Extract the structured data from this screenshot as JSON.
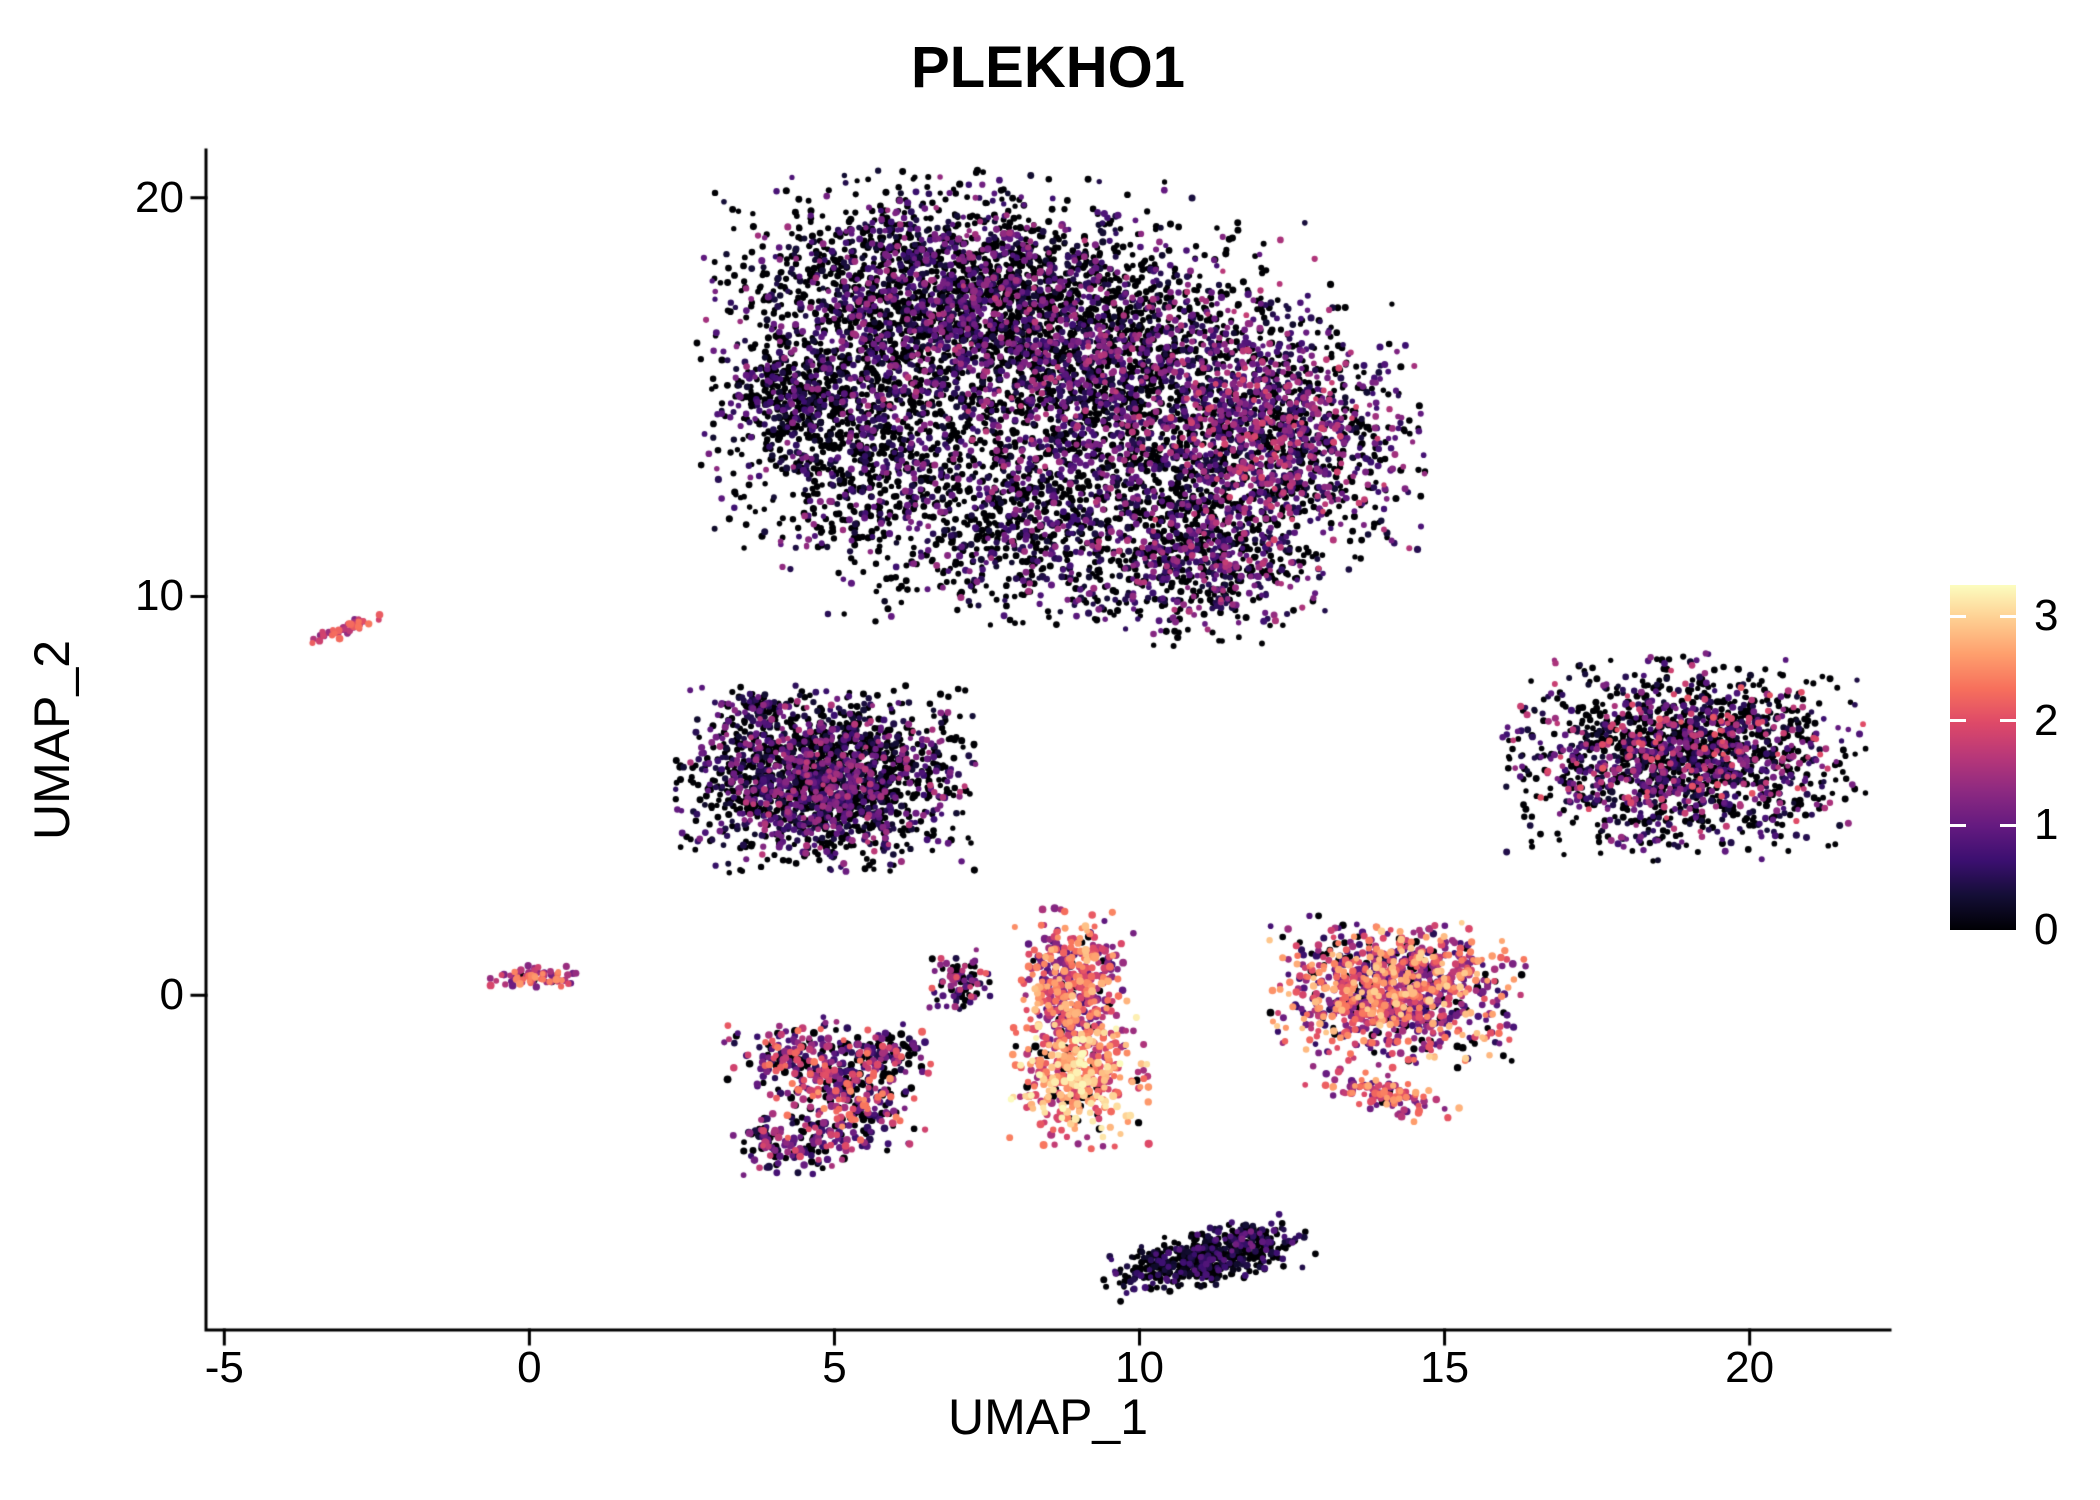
{
  "chart_data": {
    "type": "scatter",
    "title": "PLEKHO1",
    "xlabel": "UMAP_1",
    "ylabel": "UMAP_2",
    "x_ticks": [
      -5,
      0,
      5,
      10,
      15,
      20
    ],
    "y_ticks": [
      0,
      10,
      20
    ],
    "xlim": [
      -5.3,
      22.3
    ],
    "ylim": [
      -8.4,
      21.2
    ],
    "grid": false,
    "legend_position": "right",
    "colorbar": {
      "ticks": [
        0,
        1,
        2,
        3
      ],
      "vmin": 0,
      "vmax": 3.3,
      "colormap": "magma",
      "stops": [
        {
          "t": 0.0,
          "color": "#000004"
        },
        {
          "t": 0.1,
          "color": "#140e36"
        },
        {
          "t": 0.2,
          "color": "#3b0f70"
        },
        {
          "t": 0.3,
          "color": "#641a80"
        },
        {
          "t": 0.4,
          "color": "#8c2981"
        },
        {
          "t": 0.5,
          "color": "#b73779"
        },
        {
          "t": 0.6,
          "color": "#de4968"
        },
        {
          "t": 0.7,
          "color": "#f7705c"
        },
        {
          "t": 0.8,
          "color": "#fe9f6d"
        },
        {
          "t": 0.9,
          "color": "#fece91"
        },
        {
          "t": 1.0,
          "color": "#fcfdbf"
        }
      ]
    },
    "clusters": [
      {
        "name": "main-upper-left",
        "cx": 6.8,
        "cy": 17.7,
        "sx": 1.7,
        "sy": 1.25,
        "n": 2000,
        "p0": 0.6,
        "vmin": 0.25,
        "vmax": 1.5,
        "skew": 1.4
      },
      {
        "name": "main-center",
        "cx": 9.3,
        "cy": 15.6,
        "sx": 1.7,
        "sy": 1.6,
        "n": 2300,
        "p0": 0.52,
        "vmin": 0.25,
        "vmax": 1.7,
        "skew": 1.4
      },
      {
        "name": "main-right-lobe",
        "cx": 12.2,
        "cy": 13.9,
        "sx": 1.05,
        "sy": 1.45,
        "n": 1300,
        "p0": 0.38,
        "vmin": 0.3,
        "vmax": 1.9,
        "skew": 1.2
      },
      {
        "name": "main-left-lobe",
        "cx": 5.2,
        "cy": 14.2,
        "sx": 1.0,
        "sy": 1.5,
        "n": 950,
        "p0": 0.62,
        "vmin": 0.25,
        "vmax": 1.4,
        "skew": 1.5
      },
      {
        "name": "main-bottom",
        "cx": 8.3,
        "cy": 11.9,
        "sx": 1.6,
        "sy": 1.0,
        "n": 850,
        "p0": 0.62,
        "vmin": 0.25,
        "vmax": 1.5,
        "skew": 1.4
      },
      {
        "name": "main-bottom-right",
        "cx": 11.0,
        "cy": 10.9,
        "sx": 0.9,
        "sy": 0.9,
        "n": 600,
        "p0": 0.45,
        "vmin": 0.3,
        "vmax": 1.7,
        "skew": 1.3
      },
      {
        "name": "main-left-nub",
        "cx": 4.2,
        "cy": 15.2,
        "sx": 0.5,
        "sy": 0.55,
        "n": 200,
        "p0": 0.6,
        "vmin": 0.25,
        "vmax": 1.2,
        "skew": 1.4
      },
      {
        "name": "main-south-noise",
        "cx": 8.0,
        "cy": 10.1,
        "sx": 1.5,
        "sy": 0.5,
        "n": 70,
        "p0": 0.7,
        "vmin": 0.2,
        "vmax": 1.0,
        "skew": 1.4
      },
      {
        "name": "far-left-streak",
        "cx": -3.05,
        "cy": 9.15,
        "sx": 0.3,
        "sy": 0.07,
        "rot": 35,
        "n": 42,
        "p0": 0.03,
        "vmin": 1.2,
        "vmax": 2.4,
        "skew": 1.0,
        "rscale": 1.1
      },
      {
        "name": "mid-left",
        "cx": 4.8,
        "cy": 5.4,
        "sx": 1.05,
        "sy": 1.0,
        "n": 1900,
        "p0": 0.52,
        "vmin": 0.25,
        "vmax": 1.7,
        "skew": 1.5
      },
      {
        "name": "mid-left-nub",
        "cx": 3.75,
        "cy": 7.2,
        "sx": 0.3,
        "sy": 0.22,
        "n": 60,
        "p0": 0.5,
        "vmin": 0.25,
        "vmax": 1.4,
        "skew": 1.3
      },
      {
        "name": "right-round",
        "cx": 18.9,
        "cy": 6.0,
        "sx": 1.25,
        "sy": 1.1,
        "n": 1700,
        "p0": 0.5,
        "vmin": 0.25,
        "vmax": 2.1,
        "skew": 1.6
      },
      {
        "name": "tiny-origin",
        "cx": 0.05,
        "cy": 0.45,
        "sx": 0.33,
        "sy": 0.13,
        "n": 70,
        "p0": 0.05,
        "vmin": 1.0,
        "vmax": 2.6,
        "skew": 1.1,
        "rscale": 1.1
      },
      {
        "name": "small-mid",
        "cx": 7.05,
        "cy": 0.3,
        "sx": 0.22,
        "sy": 0.35,
        "n": 85,
        "p0": 0.32,
        "vmin": 0.4,
        "vmax": 2.2,
        "skew": 1.2
      },
      {
        "name": "bright-upper",
        "cx": 8.9,
        "cy": 0.2,
        "sx": 0.42,
        "sy": 0.85,
        "n": 420,
        "p0": 0.08,
        "vmin": 0.7,
        "vmax": 2.9,
        "skew": 0.9,
        "rscale": 1.12
      },
      {
        "name": "bright-lower",
        "cx": 9.0,
        "cy": -2.1,
        "sx": 0.48,
        "sy": 0.75,
        "n": 380,
        "p0": 0.04,
        "vmin": 1.3,
        "vmax": 3.3,
        "skew": 0.75,
        "rscale": 1.15
      },
      {
        "name": "lower-left-a",
        "cx": 4.6,
        "cy": -1.6,
        "sx": 0.6,
        "sy": 0.45,
        "n": 220,
        "p0": 0.28,
        "vmin": 0.4,
        "vmax": 2.4,
        "skew": 1.1,
        "rscale": 1.1
      },
      {
        "name": "lower-left-b",
        "cx": 5.3,
        "cy": -2.7,
        "sx": 0.55,
        "sy": 0.65,
        "n": 230,
        "p0": 0.28,
        "vmin": 0.4,
        "vmax": 2.6,
        "skew": 1.1,
        "rscale": 1.1
      },
      {
        "name": "lower-left-c",
        "cx": 4.2,
        "cy": -3.7,
        "sx": 0.45,
        "sy": 0.35,
        "n": 130,
        "p0": 0.33,
        "vmin": 0.3,
        "vmax": 2.0,
        "skew": 1.2,
        "rscale": 1.1
      },
      {
        "name": "lower-left-d",
        "cx": 5.9,
        "cy": -1.35,
        "sx": 0.33,
        "sy": 0.28,
        "n": 90,
        "p0": 0.3,
        "vmin": 0.4,
        "vmax": 2.2,
        "skew": 1.1,
        "rscale": 1.1
      },
      {
        "name": "right-mid",
        "cx": 14.2,
        "cy": 0.1,
        "sx": 0.9,
        "sy": 0.8,
        "n": 1050,
        "p0": 0.14,
        "vmin": 0.5,
        "vmax": 3.0,
        "skew": 1.0,
        "rscale": 1.08
      },
      {
        "name": "right-mid-tail",
        "cx": 14.0,
        "cy": -2.5,
        "sx": 0.55,
        "sy": 0.2,
        "rot": -22,
        "n": 110,
        "p0": 0.08,
        "vmin": 0.8,
        "vmax": 2.8,
        "skew": 1.0,
        "rscale": 1.08
      },
      {
        "name": "bottom-dark",
        "cx": 11.1,
        "cy": -6.6,
        "sx": 0.75,
        "sy": 0.3,
        "rot": 18,
        "n": 520,
        "p0": 0.6,
        "vmin": 0.1,
        "vmax": 0.9,
        "skew": 1.4
      },
      {
        "name": "bottom-dark-tip",
        "cx": 11.8,
        "cy": -6.1,
        "sx": 0.25,
        "sy": 0.18,
        "n": 80,
        "p0": 0.4,
        "vmin": 0.3,
        "vmax": 1.2,
        "skew": 1.2
      }
    ]
  }
}
